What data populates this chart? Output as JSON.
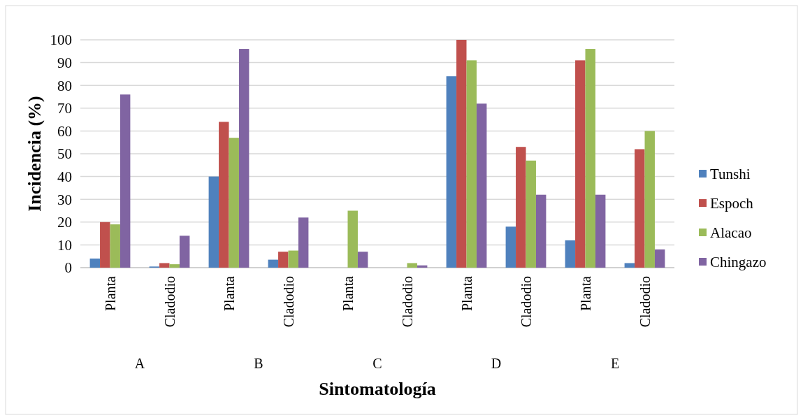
{
  "chart_data": {
    "type": "bar",
    "xlabel": "Sintomatología",
    "ylabel": "Incidencia (%)",
    "categories": [
      "Planta",
      "Cladodio",
      "Planta",
      "Cladodio",
      "Planta",
      "Cladodio",
      "Planta",
      "Cladodio",
      "Planta",
      "Cladodio"
    ],
    "annotations": [
      "A",
      "B",
      "C",
      "D",
      "E"
    ],
    "series": [
      {
        "name": "Tunshi",
        "color": "#4f81bd",
        "values": [
          4,
          0.5,
          40,
          3.5,
          0,
          0,
          84,
          18,
          12,
          2
        ]
      },
      {
        "name": "Espoch",
        "color": "#c0504d",
        "values": [
          20,
          2,
          64,
          7,
          0,
          0,
          100,
          53,
          91,
          52
        ]
      },
      {
        "name": "Alacao",
        "color": "#9bbb59",
        "values": [
          19,
          1.5,
          57,
          7.5,
          25,
          2,
          91,
          47,
          96,
          60
        ]
      },
      {
        "name": "Chingazo",
        "color": "#8064a2",
        "values": [
          76,
          14,
          96,
          22,
          7,
          1,
          72,
          32,
          32,
          8
        ]
      }
    ],
    "ylim": [
      0,
      100
    ],
    "yticks": [
      0,
      10,
      20,
      30,
      40,
      50,
      60,
      70,
      80,
      90,
      100
    ],
    "grid": "y",
    "legend": "right"
  }
}
